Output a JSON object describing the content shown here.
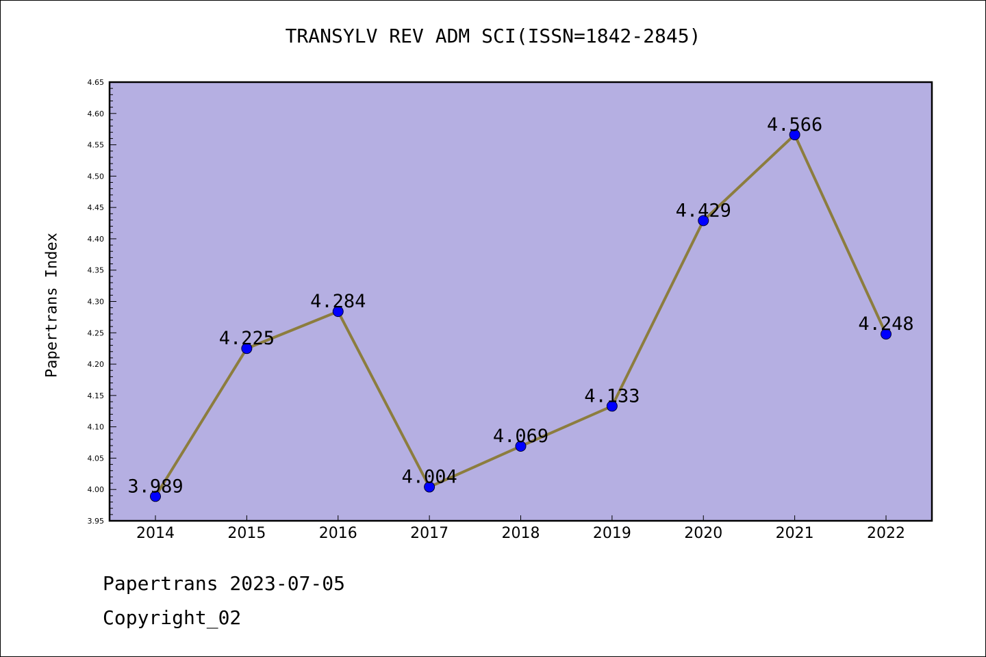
{
  "chart_data": {
    "type": "line",
    "title": "TRANSYLV REV ADM SCI(ISSN=1842-2845)",
    "xlabel": "",
    "ylabel": "Papertrans Index",
    "categories": [
      "2014",
      "2015",
      "2016",
      "2017",
      "2018",
      "2019",
      "2020",
      "2021",
      "2022"
    ],
    "series": [
      {
        "values": [
          3.989,
          4.225,
          4.284,
          4.004,
          4.069,
          4.133,
          4.429,
          4.566,
          4.248
        ],
        "labels": [
          "3.989",
          "4.225",
          "4.284",
          "4.004",
          "4.069",
          "4.133",
          "4.429",
          "4.566",
          "4.248"
        ]
      }
    ],
    "ylim": [
      3.95,
      4.65
    ],
    "yticks": [
      "3.95",
      "4.00",
      "4.05",
      "4.10",
      "4.15",
      "4.20",
      "4.25",
      "4.30",
      "4.35",
      "4.40",
      "4.45",
      "4.50",
      "4.55",
      "4.60",
      "4.65"
    ],
    "grid": false,
    "legend": "none",
    "colors": {
      "plot_background": "#b5afe2",
      "line": "#8c7d3e",
      "marker": "#0000ff",
      "axes": "#000000"
    }
  },
  "footer": {
    "date_line": "Papertrans 2023-07-05",
    "copyright": "Copyright_02"
  }
}
